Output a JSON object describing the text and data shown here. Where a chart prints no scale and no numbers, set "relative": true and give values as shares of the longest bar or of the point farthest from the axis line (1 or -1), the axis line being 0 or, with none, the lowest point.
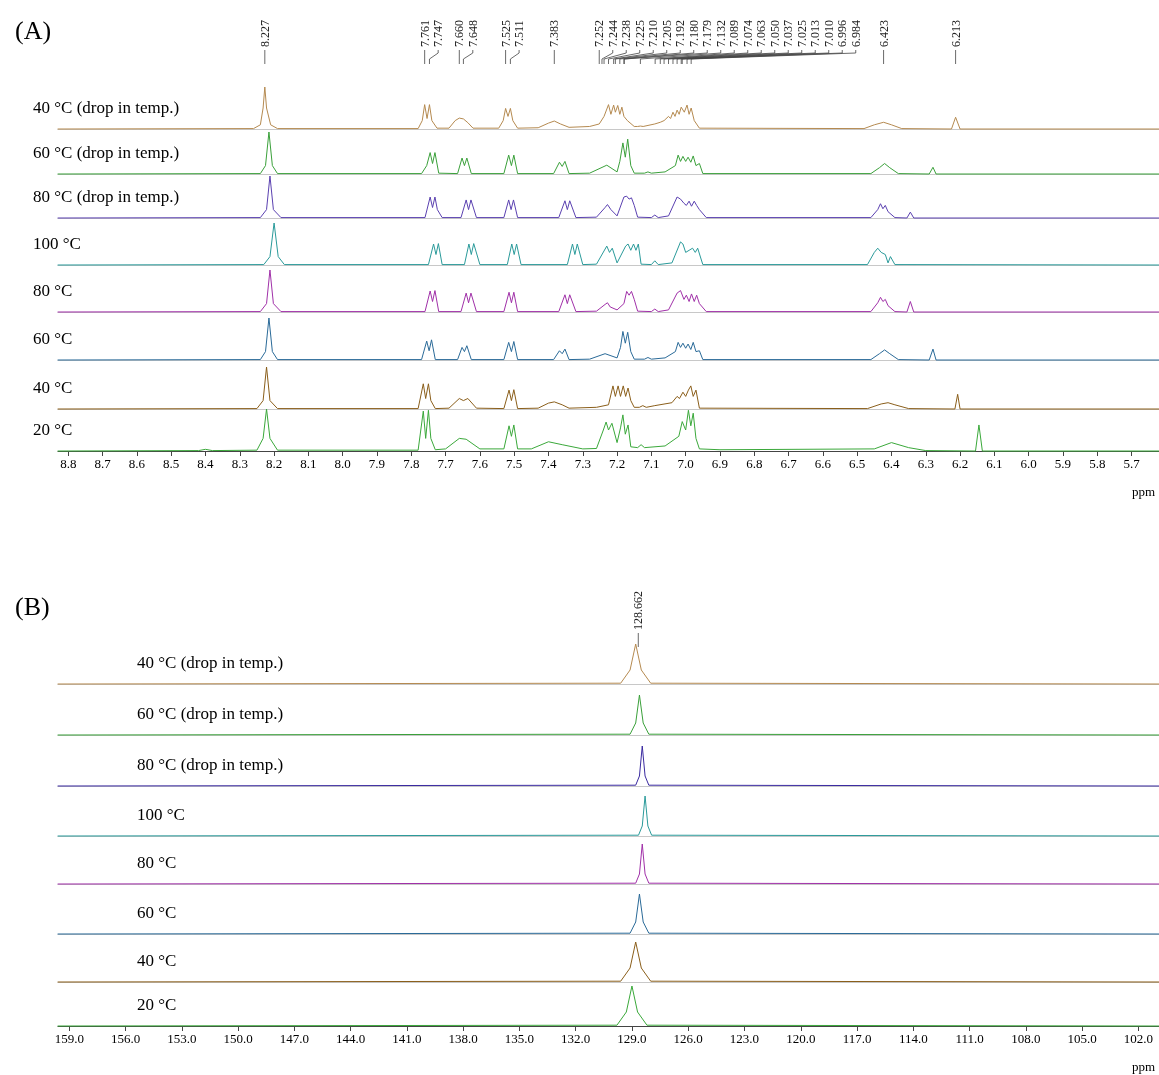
{
  "chart_data": [
    {
      "type": "line",
      "title": "(A)",
      "relative": true,
      "marker": "none",
      "tick_labels": false,
      "xlim": [
        8.83,
        5.62
      ],
      "annotations": [
        {
          "text": "8.227",
          "x": 8.227
        },
        {
          "text": "7.761",
          "x": 7.761
        },
        {
          "text": "7.747",
          "x": 7.747
        },
        {
          "text": "7.660",
          "x": 7.66
        },
        {
          "text": "7.648",
          "x": 7.648
        },
        {
          "text": "7.525",
          "x": 7.525
        },
        {
          "text": "7.511",
          "x": 7.511
        },
        {
          "text": "7.383",
          "x": 7.383
        },
        {
          "text": "7.252",
          "x": 7.252
        },
        {
          "text": "7.244",
          "x": 7.244
        },
        {
          "text": "7.238",
          "x": 7.238
        },
        {
          "text": "7.225",
          "x": 7.225
        },
        {
          "text": "7.210",
          "x": 7.21
        },
        {
          "text": "7.205",
          "x": 7.205
        },
        {
          "text": "7.192",
          "x": 7.192
        },
        {
          "text": "7.180",
          "x": 7.18
        },
        {
          "text": "7.179",
          "x": 7.179
        },
        {
          "text": "7.132",
          "x": 7.132
        },
        {
          "text": "7.089",
          "x": 7.089
        },
        {
          "text": "7.074",
          "x": 7.074
        },
        {
          "text": "7.063",
          "x": 7.063
        },
        {
          "text": "7.050",
          "x": 7.05
        },
        {
          "text": "7.037",
          "x": 7.037
        },
        {
          "text": "7.025",
          "x": 7.025
        },
        {
          "text": "7.013",
          "x": 7.013
        },
        {
          "text": "7.010",
          "x": 7.01
        },
        {
          "text": "6.996",
          "x": 6.996
        },
        {
          "text": "6.984",
          "x": 6.984
        },
        {
          "text": "6.423",
          "x": 6.423
        },
        {
          "text": "6.213",
          "x": 6.213
        }
      ],
      "series": [
        {
          "name": "40 °C (drop in temp.)",
          "color": "#b58a50",
          "x": [
            8.83,
            8.26,
            8.24,
            8.232,
            8.227,
            8.222,
            8.21,
            8.19,
            7.78,
            7.768,
            7.761,
            7.754,
            7.747,
            7.74,
            7.725,
            7.69,
            7.672,
            7.66,
            7.648,
            7.635,
            7.62,
            7.545,
            7.532,
            7.525,
            7.518,
            7.511,
            7.504,
            7.49,
            7.43,
            7.4,
            7.383,
            7.365,
            7.34,
            7.28,
            7.252,
            7.238,
            7.225,
            7.218,
            7.21,
            7.205,
            7.198,
            7.192,
            7.186,
            7.18,
            7.17,
            7.15,
            7.14,
            7.132,
            7.124,
            7.09,
            7.074,
            7.063,
            7.05,
            7.044,
            7.037,
            7.031,
            7.025,
            7.019,
            7.013,
            7.004,
            6.996,
            6.99,
            6.984,
            6.975,
            6.96,
            6.48,
            6.45,
            6.423,
            6.4,
            6.37,
            6.225,
            6.213,
            6.2,
            5.62
          ],
          "values": [
            0,
            0.01,
            0.1,
            0.5,
            1,
            0.5,
            0.1,
            0.01,
            0.01,
            0.2,
            0.58,
            0.25,
            0.58,
            0.2,
            0.02,
            0.02,
            0.2,
            0.26,
            0.24,
            0.15,
            0.02,
            0.02,
            0.2,
            0.49,
            0.3,
            0.49,
            0.2,
            0.02,
            0.03,
            0.14,
            0.19,
            0.12,
            0.04,
            0.06,
            0.12,
            0.3,
            0.58,
            0.35,
            0.57,
            0.4,
            0.56,
            0.35,
            0.52,
            0.3,
            0.2,
            0.06,
            0.06,
            0.07,
            0.06,
            0.12,
            0.16,
            0.2,
            0.3,
            0.25,
            0.4,
            0.3,
            0.45,
            0.35,
            0.52,
            0.4,
            0.57,
            0.35,
            0.5,
            0.2,
            0.02,
            0.01,
            0.1,
            0.16,
            0.1,
            0.01,
            0,
            0.28,
            0,
            0
          ]
        }
      ]
    },
    {
      "type": "line",
      "relative": true,
      "marker": "none",
      "tick_labels": false,
      "xlim": [
        8.83,
        5.62
      ],
      "series": [
        {
          "name": "60 °C (drop in temp.)",
          "color": "#3aa03a",
          "x": [
            8.83,
            8.24,
            8.225,
            8.215,
            8.205,
            8.19,
            7.77,
            7.755,
            7.745,
            7.738,
            7.731,
            7.72,
            7.665,
            7.652,
            7.645,
            7.638,
            7.625,
            7.53,
            7.516,
            7.508,
            7.501,
            7.49,
            7.385,
            7.368,
            7.36,
            7.352,
            7.34,
            7.28,
            7.23,
            7.2,
            7.192,
            7.183,
            7.176,
            7.169,
            7.16,
            7.15,
            7.12,
            7.11,
            7.1,
            7.06,
            7.03,
            7.022,
            7.015,
            7.008,
            7.0,
            6.993,
            6.985,
            6.978,
            6.97,
            6.96,
            6.95,
            6.46,
            6.435,
            6.42,
            6.405,
            6.38,
            6.29,
            6.279,
            6.27,
            5.62
          ],
          "values": [
            0,
            0.01,
            0.2,
            1,
            0.2,
            0.01,
            0.01,
            0.2,
            0.51,
            0.25,
            0.51,
            0.02,
            0.01,
            0.38,
            0.2,
            0.38,
            0.01,
            0.01,
            0.45,
            0.2,
            0.45,
            0.01,
            0.01,
            0.28,
            0.18,
            0.3,
            0.01,
            0.02,
            0.21,
            0.05,
            0.3,
            0.74,
            0.4,
            0.83,
            0.2,
            0.02,
            0.02,
            0.05,
            0.02,
            0.05,
            0.2,
            0.45,
            0.3,
            0.42,
            0.3,
            0.4,
            0.28,
            0.43,
            0.2,
            0.25,
            0.01,
            0.01,
            0.15,
            0.25,
            0.15,
            0.01,
            0,
            0.16,
            0,
            0
          ]
        }
      ]
    },
    {
      "type": "line",
      "relative": true,
      "marker": "none",
      "tick_labels": false,
      "xlim": [
        8.83,
        5.62
      ],
      "series": [
        {
          "name": "80 °C (drop in temp.)",
          "color": "#5a40b0",
          "x": [
            8.83,
            8.24,
            8.222,
            8.212,
            8.202,
            8.18,
            7.76,
            7.745,
            7.738,
            7.731,
            7.724,
            7.71,
            7.655,
            7.64,
            7.633,
            7.626,
            7.61,
            7.53,
            7.516,
            7.509,
            7.502,
            7.49,
            7.37,
            7.352,
            7.345,
            7.338,
            7.32,
            7.26,
            7.235,
            7.228,
            7.218,
            7.2,
            7.18,
            7.172,
            7.165,
            7.158,
            7.15,
            7.14,
            7.1,
            7.09,
            7.08,
            7.05,
            7.025,
            7.015,
            7.005,
            6.998,
            6.99,
            6.983,
            6.975,
            6.968,
            6.96,
            6.94,
            6.46,
            6.44,
            6.432,
            6.425,
            6.418,
            6.41,
            6.39,
            6.355,
            6.345,
            6.335,
            5.62
          ],
          "values": [
            0,
            0.01,
            0.2,
            1,
            0.2,
            0.01,
            0.01,
            0.5,
            0.25,
            0.5,
            0.2,
            0.01,
            0.01,
            0.43,
            0.2,
            0.43,
            0.01,
            0.01,
            0.43,
            0.2,
            0.43,
            0.01,
            0.01,
            0.41,
            0.2,
            0.41,
            0.01,
            0.02,
            0.25,
            0.32,
            0.2,
            0.05,
            0.5,
            0.52,
            0.45,
            0.48,
            0.3,
            0.02,
            0.01,
            0.07,
            0.01,
            0.05,
            0.5,
            0.45,
            0.35,
            0.3,
            0.4,
            0.28,
            0.4,
            0.3,
            0.2,
            0.01,
            0.01,
            0.2,
            0.34,
            0.22,
            0.3,
            0.15,
            0.01,
            0,
            0.14,
            0,
            0
          ]
        }
      ]
    },
    {
      "type": "line",
      "relative": true,
      "marker": "none",
      "tick_labels": false,
      "xlim": [
        8.83,
        5.62
      ],
      "series": [
        {
          "name": "100 °C",
          "color": "#2a9a9a",
          "x": [
            8.83,
            8.23,
            8.212,
            8.2,
            8.188,
            8.17,
            7.75,
            7.735,
            7.728,
            7.721,
            7.71,
            7.645,
            7.632,
            7.625,
            7.618,
            7.6,
            7.52,
            7.507,
            7.5,
            7.493,
            7.48,
            7.345,
            7.33,
            7.323,
            7.316,
            7.3,
            7.26,
            7.23,
            7.222,
            7.214,
            7.2,
            7.175,
            7.168,
            7.16,
            7.152,
            7.145,
            7.138,
            7.13,
            7.1,
            7.09,
            7.08,
            7.04,
            7.015,
            7.008,
            7.0,
            6.99,
            6.98,
            6.972,
            6.965,
            6.95,
            6.47,
            6.45,
            6.44,
            6.43,
            6.418,
            6.41,
            6.403,
            6.39,
            5.62
          ],
          "values": [
            0,
            0.01,
            0.2,
            1,
            0.2,
            0.01,
            0.01,
            0.5,
            0.25,
            0.51,
            0.01,
            0.01,
            0.5,
            0.25,
            0.51,
            0.01,
            0.01,
            0.5,
            0.25,
            0.5,
            0.01,
            0.01,
            0.5,
            0.25,
            0.5,
            0.01,
            0.02,
            0.45,
            0.3,
            0.4,
            0.05,
            0.45,
            0.5,
            0.35,
            0.5,
            0.35,
            0.5,
            0.02,
            0.01,
            0.1,
            0.01,
            0.05,
            0.55,
            0.5,
            0.3,
            0.35,
            0.4,
            0.3,
            0.4,
            0.01,
            0.01,
            0.3,
            0.4,
            0.3,
            0.25,
            0.05,
            0.2,
            0.01,
            0
          ]
        }
      ]
    },
    {
      "type": "line",
      "relative": true,
      "marker": "none",
      "tick_labels": false,
      "xlim": [
        8.83,
        5.62
      ],
      "series": [
        {
          "name": "80 °C",
          "color": "#a030a8",
          "x": [
            8.83,
            8.24,
            8.222,
            8.212,
            8.202,
            8.18,
            7.76,
            7.745,
            7.738,
            7.731,
            7.72,
            7.655,
            7.64,
            7.633,
            7.626,
            7.61,
            7.53,
            7.515,
            7.508,
            7.501,
            7.49,
            7.37,
            7.352,
            7.345,
            7.338,
            7.32,
            7.26,
            7.235,
            7.228,
            7.22,
            7.2,
            7.18,
            7.172,
            7.165,
            7.158,
            7.15,
            7.14,
            7.1,
            7.09,
            7.08,
            7.05,
            7.025,
            7.015,
            7.005,
            6.998,
            6.99,
            6.983,
            6.975,
            6.968,
            6.96,
            6.94,
            6.46,
            6.44,
            6.432,
            6.425,
            6.418,
            6.41,
            6.39,
            6.355,
            6.345,
            6.335,
            5.62
          ],
          "values": [
            0,
            0.01,
            0.2,
            1,
            0.2,
            0.01,
            0.01,
            0.5,
            0.25,
            0.51,
            0.01,
            0.01,
            0.45,
            0.22,
            0.45,
            0.01,
            0.01,
            0.47,
            0.22,
            0.47,
            0.01,
            0.01,
            0.41,
            0.2,
            0.41,
            0.01,
            0.02,
            0.18,
            0.22,
            0.12,
            0.05,
            0.2,
            0.49,
            0.4,
            0.49,
            0.3,
            0.02,
            0.01,
            0.07,
            0.01,
            0.05,
            0.45,
            0.51,
            0.3,
            0.4,
            0.25,
            0.43,
            0.25,
            0.4,
            0.2,
            0.01,
            0.01,
            0.22,
            0.35,
            0.25,
            0.3,
            0.15,
            0.01,
            0,
            0.25,
            0,
            0
          ]
        }
      ]
    },
    {
      "type": "line",
      "relative": true,
      "marker": "none",
      "tick_labels": false,
      "xlim": [
        8.83,
        5.62
      ],
      "series": [
        {
          "name": "60 °C",
          "color": "#2a6a98",
          "x": [
            8.83,
            8.24,
            8.225,
            8.215,
            8.205,
            8.19,
            7.77,
            7.755,
            7.748,
            7.741,
            7.73,
            7.665,
            7.652,
            7.645,
            7.638,
            7.625,
            7.53,
            7.516,
            7.508,
            7.501,
            7.49,
            7.385,
            7.368,
            7.36,
            7.352,
            7.34,
            7.28,
            7.235,
            7.2,
            7.19,
            7.183,
            7.176,
            7.169,
            7.16,
            7.15,
            7.12,
            7.11,
            7.1,
            7.06,
            7.03,
            7.022,
            7.015,
            7.008,
            7.0,
            6.993,
            6.985,
            6.978,
            6.97,
            6.96,
            6.95,
            6.46,
            6.435,
            6.42,
            6.405,
            6.38,
            6.29,
            6.279,
            6.27,
            5.62
          ],
          "values": [
            0,
            0.01,
            0.2,
            1,
            0.2,
            0.01,
            0.01,
            0.45,
            0.22,
            0.48,
            0.01,
            0.01,
            0.3,
            0.2,
            0.34,
            0.01,
            0.01,
            0.42,
            0.2,
            0.44,
            0.01,
            0.01,
            0.22,
            0.15,
            0.26,
            0.01,
            0.02,
            0.15,
            0.05,
            0.3,
            0.68,
            0.4,
            0.66,
            0.2,
            0.02,
            0.02,
            0.06,
            0.02,
            0.05,
            0.2,
            0.42,
            0.3,
            0.4,
            0.28,
            0.38,
            0.25,
            0.42,
            0.2,
            0.22,
            0.01,
            0.01,
            0.15,
            0.24,
            0.15,
            0.01,
            0,
            0.26,
            0,
            0
          ]
        }
      ]
    },
    {
      "type": "line",
      "relative": true,
      "marker": "none",
      "tick_labels": false,
      "xlim": [
        8.83,
        5.62
      ],
      "series": [
        {
          "name": "40 °C",
          "color": "#8a5e1a",
          "x": [
            8.83,
            8.25,
            8.232,
            8.222,
            8.212,
            8.19,
            7.78,
            7.765,
            7.758,
            7.75,
            7.743,
            7.73,
            7.69,
            7.66,
            7.648,
            7.635,
            7.61,
            7.53,
            7.515,
            7.508,
            7.501,
            7.49,
            7.43,
            7.4,
            7.383,
            7.36,
            7.34,
            7.26,
            7.225,
            7.212,
            7.205,
            7.197,
            7.19,
            7.182,
            7.175,
            7.168,
            7.16,
            7.15,
            7.135,
            7.125,
            7.115,
            7.09,
            7.04,
            7.025,
            7.018,
            7.008,
            7.0,
            6.992,
            6.985,
            6.978,
            6.97,
            6.96,
            6.47,
            6.43,
            6.41,
            6.39,
            6.35,
            6.215,
            6.207,
            6.2,
            5.62
          ],
          "values": [
            0,
            0.01,
            0.2,
            1,
            0.2,
            0.01,
            0.01,
            0.6,
            0.25,
            0.6,
            0.2,
            0.01,
            0.02,
            0.25,
            0.2,
            0.25,
            0.02,
            0.01,
            0.45,
            0.2,
            0.46,
            0.01,
            0.02,
            0.14,
            0.17,
            0.1,
            0.02,
            0.04,
            0.1,
            0.55,
            0.3,
            0.55,
            0.3,
            0.55,
            0.3,
            0.5,
            0.2,
            0.04,
            0.04,
            0.08,
            0.04,
            0.08,
            0.15,
            0.3,
            0.25,
            0.4,
            0.3,
            0.45,
            0.55,
            0.3,
            0.45,
            0.02,
            0.01,
            0.12,
            0.15,
            0.1,
            0.01,
            0,
            0.35,
            0,
            0
          ]
        }
      ]
    },
    {
      "type": "line",
      "relative": true,
      "marker": "none",
      "tick_labels": "x",
      "xlabel": "ppm",
      "xlim": [
        8.83,
        5.62
      ],
      "xticks": [
        8.8,
        8.7,
        8.6,
        8.5,
        8.4,
        8.3,
        8.2,
        8.1,
        {
          "value": 8,
          "label": "8.0"
        },
        7.9,
        7.8,
        7.7,
        7.6,
        7.5,
        7.4,
        7.3,
        7.2,
        7.1,
        {
          "value": 7,
          "label": "7.0"
        },
        6.9,
        6.8,
        6.7,
        6.6,
        6.5,
        6.4,
        6.3,
        6.2,
        6.1,
        {
          "value": 6,
          "label": "6.0"
        },
        5.9,
        5.8,
        5.7
      ],
      "series": [
        {
          "name": "20 °C",
          "color": "#3aa83a",
          "x": [
            8.83,
            8.42,
            8.4,
            8.38,
            8.25,
            8.232,
            8.222,
            8.212,
            8.19,
            7.78,
            7.765,
            7.758,
            7.75,
            7.743,
            7.73,
            7.7,
            7.66,
            7.64,
            7.6,
            7.53,
            7.515,
            7.508,
            7.501,
            7.49,
            7.45,
            7.4,
            7.36,
            7.3,
            7.26,
            7.24,
            7.232,
            7.225,
            7.215,
            7.2,
            7.19,
            7.183,
            7.176,
            7.168,
            7.16,
            7.14,
            7.13,
            7.12,
            7.06,
            7.02,
            7.01,
            7.0,
            6.992,
            6.985,
            6.978,
            6.97,
            6.96,
            6.9,
            6.45,
            6.4,
            6.35,
            6.3,
            6.155,
            6.145,
            6.135,
            5.62
          ],
          "values": [
            0,
            0.01,
            0.04,
            0.01,
            0.02,
            0.3,
            1,
            0.3,
            0.02,
            0.02,
            0.95,
            0.3,
            0.97,
            0.3,
            0.03,
            0.05,
            0.3,
            0.28,
            0.05,
            0.05,
            0.6,
            0.35,
            0.62,
            0.05,
            0.05,
            0.22,
            0.15,
            0.05,
            0.06,
            0.5,
            0.69,
            0.5,
            0.66,
            0.2,
            0.55,
            0.86,
            0.4,
            0.62,
            0.1,
            0.08,
            0.15,
            0.08,
            0.12,
            0.35,
            0.7,
            0.5,
            0.97,
            0.6,
            0.9,
            0.3,
            0.05,
            0.03,
            0.05,
            0.2,
            0.08,
            0.01,
            0,
            0.62,
            0,
            0
          ]
        }
      ]
    },
    {
      "type": "line",
      "title": "(B)",
      "relative": true,
      "marker": "none",
      "tick_labels": false,
      "xlim": [
        159.6,
        100.9
      ],
      "annotations": [
        {
          "text": "128.662",
          "x": 128.662
        }
      ],
      "series": [
        {
          "name": "40 °C (drop in temp.)",
          "color": "#b58a50",
          "x": [
            159.6,
            129.6,
            129.1,
            128.8,
            128.5,
            128.0,
            100.9
          ],
          "values": [
            0,
            0.02,
            0.35,
            1,
            0.35,
            0.02,
            0
          ]
        }
      ]
    },
    {
      "type": "line",
      "relative": true,
      "marker": "none",
      "tick_labels": false,
      "xlim": [
        159.6,
        100.9
      ],
      "series": [
        {
          "name": "60 °C (drop in temp.)",
          "color": "#3aa03a",
          "x": [
            159.6,
            129.1,
            128.8,
            128.6,
            128.4,
            128.1,
            100.9
          ],
          "values": [
            0,
            0.02,
            0.3,
            1,
            0.3,
            0.02,
            0
          ]
        }
      ]
    },
    {
      "type": "line",
      "relative": true,
      "marker": "none",
      "tick_labels": false,
      "xlim": [
        159.6,
        100.9
      ],
      "series": [
        {
          "name": "80 °C (drop in temp.)",
          "color": "#3a2aa0",
          "x": [
            159.6,
            128.8,
            128.6,
            128.45,
            128.3,
            128.1,
            100.9
          ],
          "values": [
            0,
            0.02,
            0.25,
            1,
            0.25,
            0.02,
            0
          ]
        }
      ]
    },
    {
      "type": "line",
      "relative": true,
      "marker": "none",
      "tick_labels": false,
      "xlim": [
        159.6,
        100.9
      ],
      "series": [
        {
          "name": "100 °C",
          "color": "#2a9a9a",
          "x": [
            159.6,
            128.65,
            128.45,
            128.3,
            128.15,
            127.95,
            100.9
          ],
          "values": [
            0,
            0.02,
            0.25,
            1,
            0.25,
            0.02,
            0
          ]
        }
      ]
    },
    {
      "type": "line",
      "relative": true,
      "marker": "none",
      "tick_labels": false,
      "xlim": [
        159.6,
        100.9
      ],
      "series": [
        {
          "name": "80 °C",
          "color": "#a030a8",
          "x": [
            159.6,
            128.8,
            128.6,
            128.45,
            128.3,
            128.1,
            100.9
          ],
          "values": [
            0,
            0.02,
            0.25,
            1,
            0.25,
            0.02,
            0
          ]
        }
      ]
    },
    {
      "type": "line",
      "relative": true,
      "marker": "none",
      "tick_labels": false,
      "xlim": [
        159.6,
        100.9
      ],
      "series": [
        {
          "name": "60 °C",
          "color": "#2a6a98",
          "x": [
            159.6,
            129.1,
            128.8,
            128.6,
            128.4,
            128.1,
            100.9
          ],
          "values": [
            0,
            0.02,
            0.3,
            1,
            0.3,
            0.02,
            0
          ]
        }
      ]
    },
    {
      "type": "line",
      "relative": true,
      "marker": "none",
      "tick_labels": false,
      "xlim": [
        159.6,
        100.9
      ],
      "series": [
        {
          "name": "40 °C",
          "color": "#8a5e1a",
          "x": [
            159.6,
            129.6,
            129.1,
            128.8,
            128.5,
            128.0,
            100.9
          ],
          "values": [
            0,
            0.02,
            0.35,
            1,
            0.35,
            0.02,
            0
          ]
        }
      ]
    },
    {
      "type": "line",
      "relative": true,
      "marker": "none",
      "tick_labels": "x",
      "xlabel": "ppm",
      "xlim": [
        159.6,
        100.9
      ],
      "xticks": [
        {
          "value": 159,
          "label": "159.0"
        },
        {
          "value": 156,
          "label": "156.0"
        },
        {
          "value": 153,
          "label": "153.0"
        },
        {
          "value": 150,
          "label": "150.0"
        },
        {
          "value": 147,
          "label": "147.0"
        },
        {
          "value": 144,
          "label": "144.0"
        },
        {
          "value": 141,
          "label": "141.0"
        },
        {
          "value": 138,
          "label": "138.0"
        },
        {
          "value": 135,
          "label": "135.0"
        },
        {
          "value": 132,
          "label": "132.0"
        },
        {
          "value": 129,
          "label": "129.0"
        },
        {
          "value": 126,
          "label": "126.0"
        },
        {
          "value": 123,
          "label": "123.0"
        },
        {
          "value": 120,
          "label": "120.0"
        },
        {
          "value": 117,
          "label": "117.0"
        },
        {
          "value": 114,
          "label": "114.0"
        },
        {
          "value": 111,
          "label": "111.0"
        },
        {
          "value": 108,
          "label": "108.0"
        },
        {
          "value": 105,
          "label": "105.0"
        },
        {
          "value": 102,
          "label": "102.0"
        }
      ],
      "series": [
        {
          "name": "20 °C",
          "color": "#3aa83a",
          "x": [
            159.6,
            129.8,
            129.3,
            129.0,
            128.7,
            128.2,
            100.9
          ],
          "values": [
            0,
            0.02,
            0.35,
            1,
            0.35,
            0.02,
            0
          ]
        }
      ]
    }
  ]
}
